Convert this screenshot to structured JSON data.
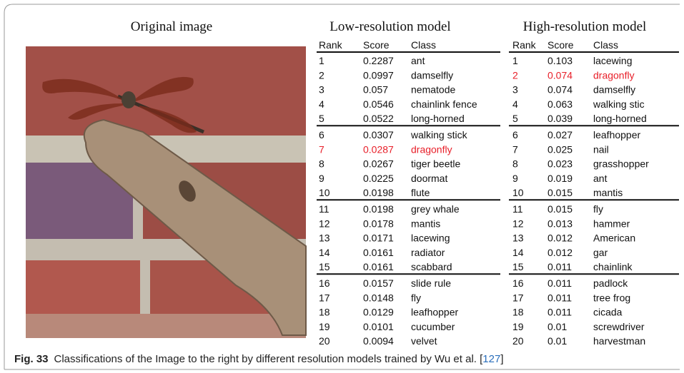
{
  "figure": {
    "titles": {
      "image": "Original image",
      "low": "Low-resolution model",
      "high": "High-resolution model"
    },
    "tables": [
      {
        "header": [
          "Rank",
          "Score",
          "Class"
        ],
        "highlight": {
          "row": 6,
          "color": "#e8202a"
        },
        "rows": [
          [
            1,
            "0.2287",
            "ant"
          ],
          [
            2,
            "0.0997",
            "damselfly"
          ],
          [
            3,
            "0.057",
            "nematode"
          ],
          [
            4,
            "0.0546",
            "chainlink fence"
          ],
          [
            5,
            "0.0522",
            "long-horned"
          ],
          [
            6,
            "0.0307",
            "walking stick"
          ],
          [
            7,
            "0.0287",
            "dragonfly"
          ],
          [
            8,
            "0.0267",
            "tiger beetle"
          ],
          [
            9,
            "0.0225",
            "doormat"
          ],
          [
            10,
            "0.0198",
            "flute"
          ],
          [
            11,
            "0.0198",
            "grey whale"
          ],
          [
            12,
            "0.0178",
            "mantis"
          ],
          [
            13,
            "0.0171",
            "lacewing"
          ],
          [
            14,
            "0.0161",
            "radiator"
          ],
          [
            15,
            "0.0161",
            "scabbard"
          ],
          [
            16,
            "0.0157",
            "slide rule"
          ],
          [
            17,
            "0.0148",
            "fly"
          ],
          [
            18,
            "0.0129",
            "leafhopper"
          ],
          [
            19,
            "0.0101",
            "cucumber"
          ],
          [
            20,
            "0.0094",
            "velvet"
          ]
        ]
      },
      {
        "header": [
          "Rank",
          "Score",
          "Class"
        ],
        "highlight": {
          "row": 1,
          "color": "#e8202a"
        },
        "rows": [
          [
            1,
            "0.103",
            "lacewing"
          ],
          [
            2,
            "0.074",
            "dragonfly"
          ],
          [
            3,
            "0.074",
            "damselfly"
          ],
          [
            4,
            "0.063",
            "walking stic"
          ],
          [
            5,
            "0.039",
            "long-horned"
          ],
          [
            6,
            "0.027",
            "leafhopper"
          ],
          [
            7,
            "0.025",
            "nail"
          ],
          [
            8,
            "0.023",
            "grasshopper"
          ],
          [
            9,
            "0.019",
            "ant"
          ],
          [
            10,
            "0.015",
            "mantis"
          ],
          [
            11,
            "0.015",
            "fly"
          ],
          [
            12,
            "0.013",
            "hammer"
          ],
          [
            13,
            "0.012",
            "American"
          ],
          [
            14,
            "0.012",
            "gar"
          ],
          [
            15,
            "0.011",
            "chainlink"
          ],
          [
            16,
            "0.011",
            "padlock"
          ],
          [
            17,
            "0.011",
            "tree frog"
          ],
          [
            18,
            "0.011",
            "cicada"
          ],
          [
            19,
            "0.01",
            "screwdriver"
          ],
          [
            20,
            "0.01",
            "harvestman"
          ]
        ]
      }
    ],
    "caption": {
      "label": "Fig. 33",
      "text": "Classifications of the Image to the right by different resolution models trained by Wu et al. [",
      "ref": "127",
      "tail": "]"
    }
  }
}
